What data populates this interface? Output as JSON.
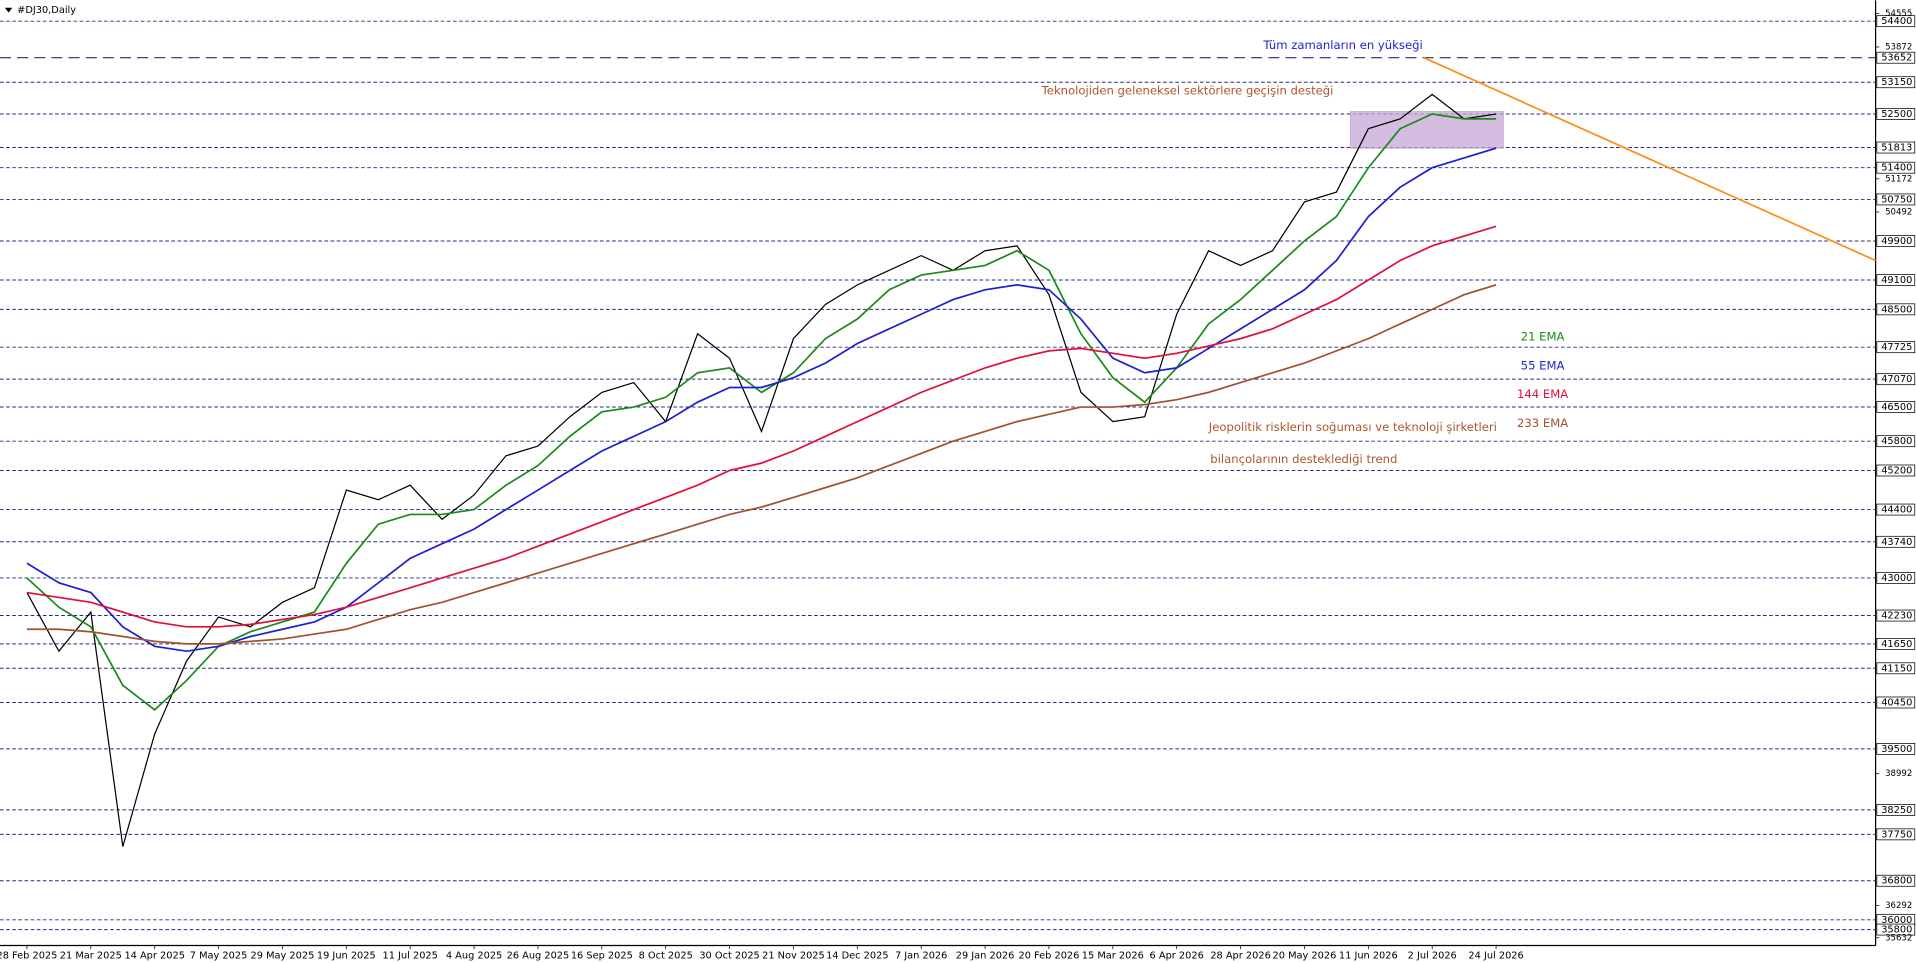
{
  "chart_data": {
    "type": "line",
    "title": "#DJ30,Daily",
    "categories": [
      "28 Feb 2025",
      null,
      "21 Mar 2025",
      null,
      "14 Apr 2025",
      null,
      "7 May 2025",
      null,
      "29 May 2025",
      null,
      "19 Jun 2025",
      null,
      "11 Jul 2025",
      null,
      "4 Aug 2025",
      null,
      "26 Aug 2025",
      null,
      "16 Sep 2025",
      null,
      "8 Oct 2025",
      null,
      "30 Oct 2025",
      null,
      "21 Nov 2025",
      null,
      "14 Dec 2025",
      null,
      "7 Jan 2026",
      null,
      "29 Jan 2026",
      null,
      "20 Feb 2026",
      null,
      "15 Mar 2026",
      null,
      "6 Apr 2026",
      null,
      "28 Apr 2026",
      null,
      "20 May 2026",
      null,
      "11 Jun 2026",
      null,
      "2 Jul 2026",
      null,
      "24 Jul 2026"
    ],
    "series": [
      {
        "color": "#000000",
        "values": [
          42700,
          41500,
          42300,
          37500,
          39800,
          41300,
          42200,
          42000,
          42500,
          42800,
          44800,
          44600,
          44900,
          44200,
          44700,
          45500,
          45700,
          46300,
          46800,
          47000,
          46200,
          48000,
          47500,
          46000,
          47900,
          48600,
          49000,
          49300,
          49600,
          49300,
          49700,
          49800,
          48800,
          46800,
          46200,
          46300,
          48400,
          49700,
          49400,
          49700,
          50700,
          50900,
          52200,
          52400,
          52900,
          52400,
          52500
        ]
      },
      {
        "name": "21 EMA",
        "color": "#1a8a1a",
        "values": [
          43000,
          42400,
          42000,
          40800,
          40300,
          40900,
          41600,
          41900,
          42100,
          42300,
          43300,
          44100,
          44300,
          44300,
          44400,
          44900,
          45300,
          45900,
          46400,
          46500,
          46700,
          47200,
          47300,
          46800,
          47200,
          47900,
          48300,
          48900,
          49200,
          49300,
          49400,
          49700,
          49300,
          48000,
          47100,
          46600,
          47300,
          48200,
          48700,
          49300,
          49900,
          50400,
          51400,
          52200,
          52500,
          52400,
          52400
        ]
      },
      {
        "name": "55 EMA",
        "color": "#1f1fd0",
        "values": [
          43300,
          42900,
          42700,
          42000,
          41600,
          41500,
          41600,
          41800,
          41950,
          42100,
          42400,
          42900,
          43400,
          43700,
          44000,
          44400,
          44800,
          45200,
          45600,
          45900,
          46200,
          46600,
          46900,
          46900,
          47100,
          47400,
          47800,
          48100,
          48400,
          48700,
          48900,
          49000,
          48900,
          48300,
          47500,
          47200,
          47300,
          47700,
          48100,
          48500,
          48900,
          49500,
          50400,
          51000,
          51400,
          51600,
          51800
        ]
      },
      {
        "name": "144 EMA",
        "color": "#e0103c",
        "values": [
          42700,
          42600,
          42500,
          42300,
          42100,
          42000,
          42000,
          42050,
          42150,
          42250,
          42400,
          42600,
          42800,
          43000,
          43200,
          43400,
          43650,
          43900,
          44150,
          44400,
          44650,
          44900,
          45200,
          45350,
          45600,
          45900,
          46200,
          46500,
          46800,
          47050,
          47300,
          47500,
          47650,
          47700,
          47600,
          47500,
          47600,
          47750,
          47900,
          48100,
          48400,
          48700,
          49100,
          49500,
          49800,
          50000,
          50200
        ]
      },
      {
        "name": "233 EMA",
        "color": "#a0522d",
        "values": [
          41950,
          41950,
          41900,
          41800,
          41700,
          41650,
          41650,
          41700,
          41750,
          41850,
          41950,
          42150,
          42350,
          42500,
          42700,
          42900,
          43100,
          43300,
          43500,
          43700,
          43900,
          44100,
          44300,
          44450,
          44650,
          44850,
          45050,
          45300,
          45550,
          45800,
          46000,
          46200,
          46350,
          46500,
          46500,
          46550,
          46650,
          46800,
          47000,
          47200,
          47400,
          47650,
          47900,
          48200,
          48500,
          48800,
          49000
        ]
      }
    ],
    "ylim": [
      35474,
      54701
    ],
    "yticks": [
      54555,
      53872,
      51172,
      50492,
      38992,
      36292,
      35632
    ],
    "levels": [
      54400,
      53150,
      52500,
      51813,
      51400,
      50750,
      49900,
      49100,
      48500,
      47725,
      47070,
      46500,
      45800,
      45200,
      44400,
      43740,
      43000,
      42230,
      41650,
      41150,
      40450,
      39500,
      38250,
      37750,
      36800,
      36000,
      35800
    ],
    "level_color": "#2a2a7a",
    "all_time_high": {
      "label": "Tüm zamanların en yükseği",
      "value": 53652,
      "color": "#1f1fd0"
    },
    "highlight_zone": {
      "low": 51800,
      "high": 52550,
      "color": "#c8a8d8"
    },
    "trendline": {
      "start": 53652,
      "end": 49500,
      "color": "#ff8c1a"
    },
    "annotations": [
      {
        "text": "Teknolojiden geleneksel sektörlere geçişin desteği",
        "color": "#b0542a"
      },
      {
        "text": "Jeopolitik risklerin soğuması ve teknoloji şirketleri",
        "color": "#b0542a"
      },
      {
        "text": "bilançolarının desteklediği trend",
        "color": "#b0542a"
      }
    ]
  }
}
